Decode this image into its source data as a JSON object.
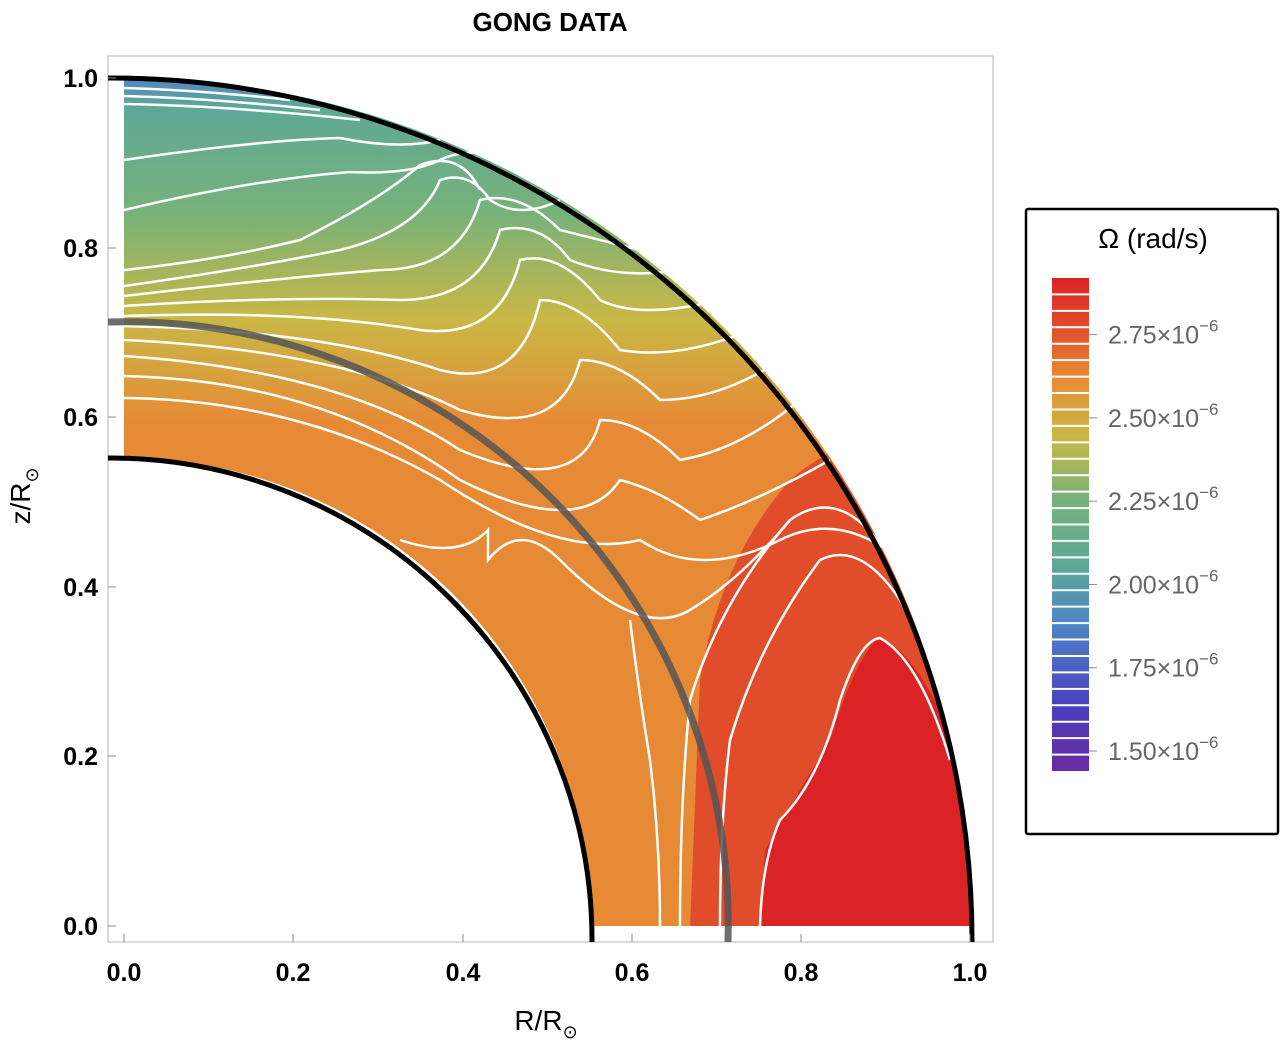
{
  "chart_data": {
    "type": "heatmap",
    "title": "GONG DATA",
    "xlabel": "R/R",
    "xlabel_sub": "⊙",
    "ylabel": "z/R",
    "ylabel_sub": "⊙",
    "xlim": [
      0.0,
      1.0
    ],
    "ylim": [
      0.0,
      1.0
    ],
    "x_ticks": [
      "0.0",
      "0.2",
      "0.4",
      "0.6",
      "0.8",
      "1.0"
    ],
    "y_ticks": [
      "0.0",
      "0.2",
      "0.4",
      "0.6",
      "0.8",
      "1.0"
    ],
    "domain": {
      "inner_radius": 0.55,
      "outer_radius": 1.0,
      "tachocline_radius": 0.71
    },
    "colorbar": {
      "title": "Ω (rad/s)",
      "range": [
        1.44e-06,
        2.92e-06
      ],
      "tick_values": [
        2.75e-06,
        2.5e-06,
        2.25e-06,
        2e-06,
        1.75e-06,
        1.5e-06
      ],
      "tick_mantissas": [
        "2.75",
        "2.50",
        "2.25",
        "2.00",
        "1.75",
        "1.50"
      ],
      "tick_times": "×10",
      "tick_exponent": "−6",
      "num_bands": 30
    },
    "colors": {
      "red": "#db2325",
      "orange_red": "#e14c2a",
      "orange": "#e78a35",
      "yellow": "#c9b845",
      "green": "#77b27a",
      "teal": "#5ea896",
      "blue": "#4f86c5",
      "purple": "#6b2aa0",
      "contour": "#ffffff",
      "boundary": "#000000",
      "tachocline": "#555555"
    }
  }
}
